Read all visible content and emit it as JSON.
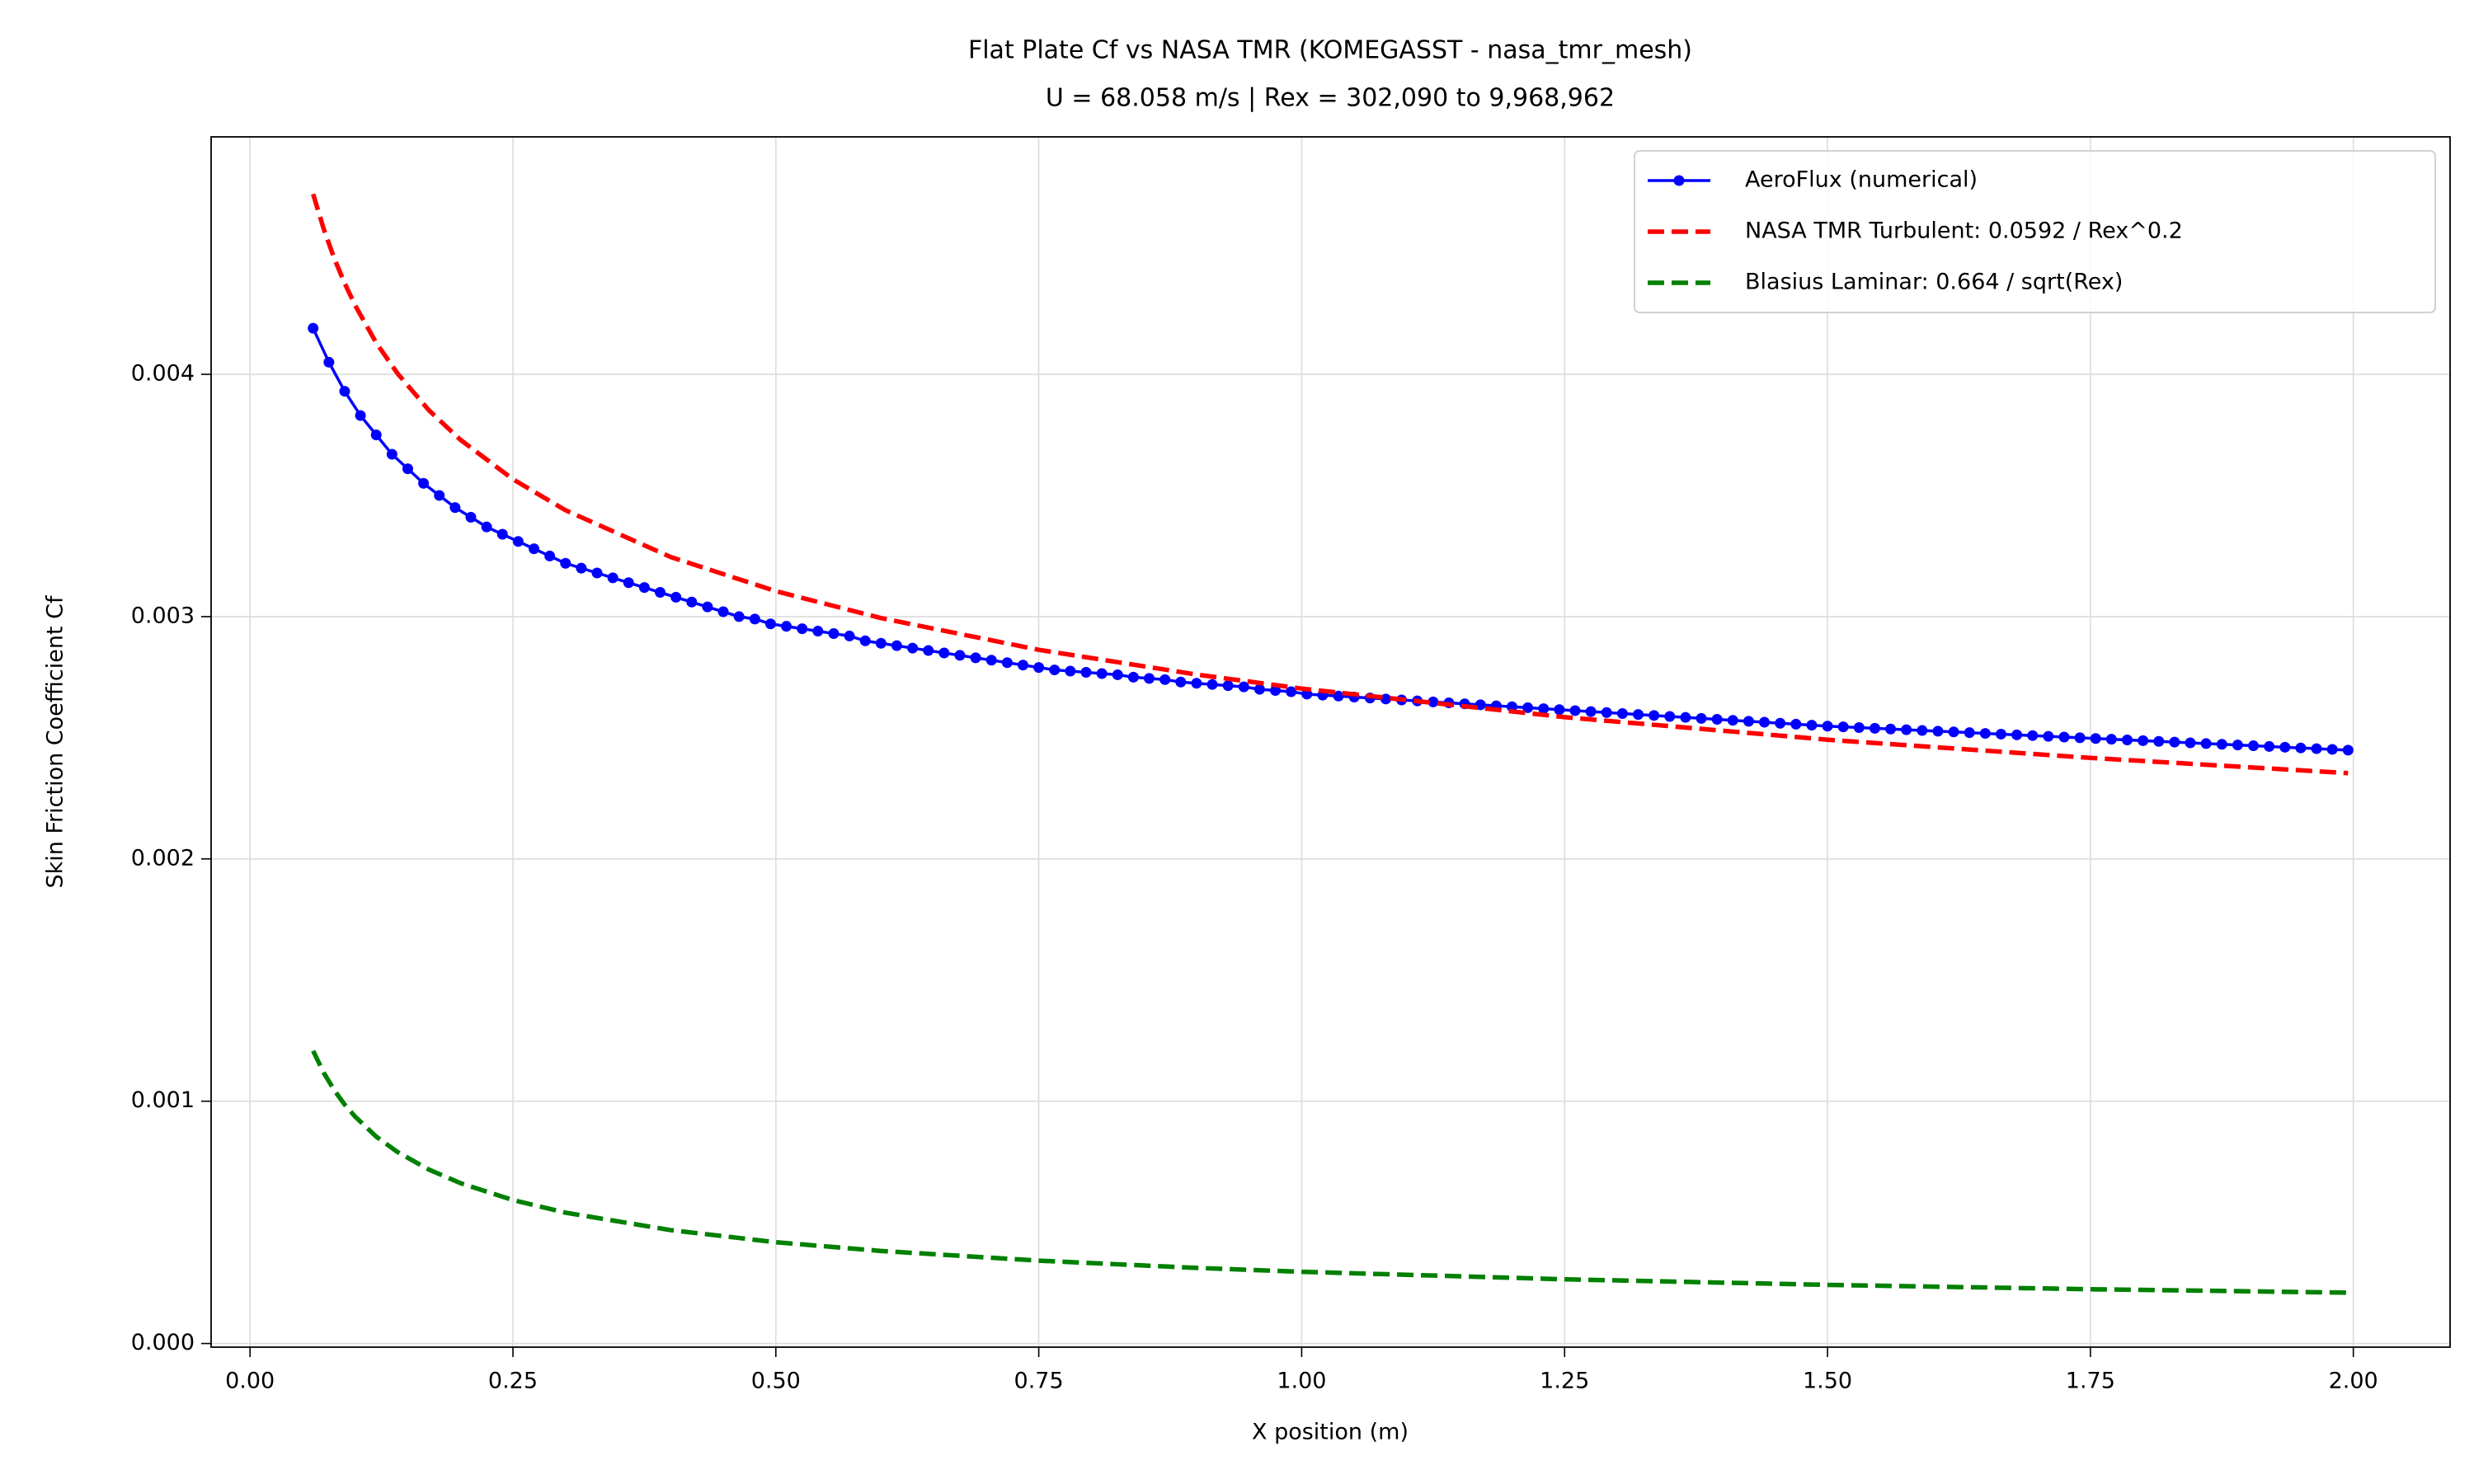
{
  "chart_data": {
    "type": "line",
    "title": "Flat Plate Cf vs NASA TMR (KOMEGASST - nasa_tmr_mesh)",
    "subtitle": "U = 68.058 m/s | Rex = 302,090 to 9,968,962",
    "x_label": "X position (m)",
    "y_label": "Skin Friction Coefficient Cf",
    "xlim": [
      -0.037,
      2.092
    ],
    "ylim": [
      -1.5e-05,
      0.00498
    ],
    "xticks": [
      {
        "value": 0,
        "label": "0.00"
      },
      0.25,
      {
        "value": 0.5,
        "label": "0.50"
      },
      0.75,
      {
        "value": 1,
        "label": "1.00"
      },
      1.25,
      {
        "value": 1.5,
        "label": "1.50"
      },
      1.75,
      {
        "value": 2,
        "label": "2.00"
      }
    ],
    "yticks": [
      {
        "value": 0,
        "label": "0.000"
      },
      0.001,
      0.002,
      0.003,
      0.004
    ],
    "grid": true,
    "legend": "upper right",
    "series": [
      {
        "name": "AeroFlux (numerical)",
        "color": "#0000ff",
        "linestyle": "solid",
        "marker": "circle",
        "x": [
          0.06,
          0.075,
          0.09,
          0.105,
          0.12,
          0.135,
          0.15,
          0.165,
          0.18,
          0.195,
          0.21,
          0.225,
          0.24,
          0.255,
          0.27,
          0.285,
          0.3,
          0.315,
          0.33,
          0.345,
          0.36,
          0.375,
          0.39,
          0.405,
          0.42,
          0.435,
          0.45,
          0.465,
          0.48,
          0.495,
          0.51,
          0.525,
          0.54,
          0.555,
          0.57,
          0.585,
          0.6,
          0.615,
          0.63,
          0.645,
          0.66,
          0.675,
          0.69,
          0.705,
          0.72,
          0.735,
          0.75,
          0.765,
          0.78,
          0.795,
          0.81,
          0.825,
          0.84,
          0.855,
          0.87,
          0.885,
          0.9,
          0.915,
          0.93,
          0.945,
          0.96,
          0.975,
          0.99,
          1.005,
          1.02,
          1.035,
          1.05,
          1.065,
          1.08,
          1.095,
          1.11,
          1.125,
          1.14,
          1.155,
          1.17,
          1.185,
          1.2,
          1.215,
          1.23,
          1.245,
          1.26,
          1.275,
          1.29,
          1.305,
          1.32,
          1.335,
          1.35,
          1.365,
          1.38,
          1.395,
          1.41,
          1.425,
          1.44,
          1.455,
          1.47,
          1.485,
          1.5,
          1.515,
          1.53,
          1.545,
          1.56,
          1.575,
          1.59,
          1.605,
          1.62,
          1.635,
          1.65,
          1.665,
          1.68,
          1.695,
          1.71,
          1.725,
          1.74,
          1.755,
          1.77,
          1.785,
          1.8,
          1.815,
          1.83,
          1.845,
          1.86,
          1.875,
          1.89,
          1.905,
          1.92,
          1.935,
          1.95,
          1.965,
          1.98,
          1.995
        ],
        "values": [
          0.00419,
          0.00405,
          0.00393,
          0.00383,
          0.00375,
          0.00367,
          0.00361,
          0.00355,
          0.0035,
          0.00345,
          0.00341,
          0.00337,
          0.00334,
          0.00331,
          0.00328,
          0.00325,
          0.00322,
          0.0032,
          0.00318,
          0.00316,
          0.00314,
          0.00312,
          0.0031,
          0.00308,
          0.00306,
          0.00304,
          0.00302,
          0.003,
          0.00299,
          0.00297,
          0.00296,
          0.00295,
          0.00294,
          0.00293,
          0.00292,
          0.0029,
          0.00289,
          0.00288,
          0.00287,
          0.00286,
          0.00285,
          0.00284,
          0.00283,
          0.00282,
          0.00281,
          0.0028,
          0.00279,
          0.00278,
          0.002775,
          0.00277,
          0.002765,
          0.00276,
          0.00275,
          0.002745,
          0.00274,
          0.00273,
          0.002725,
          0.00272,
          0.002715,
          0.00271,
          0.0027,
          0.002695,
          0.00269,
          0.00268,
          0.002676,
          0.002672,
          0.002668,
          0.002664,
          0.00266,
          0.002656,
          0.002652,
          0.002648,
          0.002644,
          0.00264,
          0.002636,
          0.002632,
          0.002628,
          0.002624,
          0.00262,
          0.002616,
          0.002612,
          0.002608,
          0.002604,
          0.0026,
          0.002596,
          0.002592,
          0.002588,
          0.002584,
          0.00258,
          0.002576,
          0.002572,
          0.002568,
          0.002564,
          0.00256,
          0.002556,
          0.002552,
          0.002548,
          0.002545,
          0.002542,
          0.002539,
          0.002536,
          0.002533,
          0.00253,
          0.002527,
          0.002524,
          0.002521,
          0.002518,
          0.002515,
          0.002512,
          0.002509,
          0.002506,
          0.002503,
          0.0025,
          0.002497,
          0.002494,
          0.002491,
          0.002488,
          0.002485,
          0.002482,
          0.002479,
          0.002476,
          0.002473,
          0.00247,
          0.002467,
          0.002464,
          0.002461,
          0.002458,
          0.002455,
          0.002452,
          0.002449
        ]
      },
      {
        "name": "NASA TMR Turbulent: 0.0592 / Rex^0.2",
        "color": "#ff0000",
        "linestyle": "dashed",
        "x": [
          0.06,
          0.07,
          0.08,
          0.09,
          0.1,
          0.12,
          0.14,
          0.17,
          0.2,
          0.25,
          0.3,
          0.4,
          0.5,
          0.6,
          0.75,
          0.9,
          1.0,
          1.25,
          1.5,
          1.75,
          1.995
        ],
        "values": [
          0.004744,
          0.004601,
          0.004479,
          0.004376,
          0.004284,
          0.00413,
          0.004005,
          0.003852,
          0.00373,
          0.003567,
          0.003439,
          0.003246,
          0.003105,
          0.002994,
          0.002863,
          0.002761,
          0.002703,
          0.002585,
          0.002492,
          0.002417,
          0.002354
        ]
      },
      {
        "name": "Blasius Laminar: 0.664 / sqrt(Rex)",
        "color": "#008000",
        "linestyle": "dashed",
        "x": [
          0.06,
          0.07,
          0.08,
          0.09,
          0.1,
          0.12,
          0.14,
          0.17,
          0.2,
          0.25,
          0.3,
          0.4,
          0.5,
          0.6,
          0.75,
          0.9,
          1.0,
          1.25,
          1.5,
          1.75,
          1.995
        ],
        "values": [
          0.001208,
          0.001118,
          0.001046,
          0.000986,
          0.000936,
          0.000854,
          0.000791,
          0.000718,
          0.000662,
          0.000592,
          0.00054,
          0.000468,
          0.000418,
          0.000382,
          0.000342,
          0.000312,
          0.000296,
          0.000265,
          0.000242,
          0.000224,
          0.00021
        ]
      }
    ]
  }
}
